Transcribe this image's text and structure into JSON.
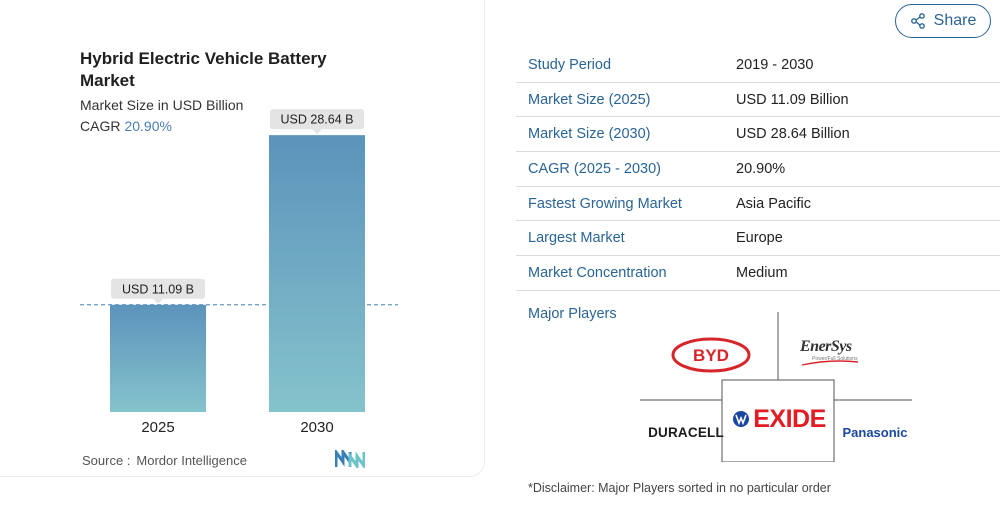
{
  "chart": {
    "title": "Hybrid Electric Vehicle Battery Market",
    "subtitle": "Market Size in USD Billion",
    "cagr_label": "CAGR",
    "cagr_value": "20.90%",
    "source_label": "Source :",
    "source_value": "Mordor Intelligence"
  },
  "chart_data": {
    "type": "bar",
    "title": "Hybrid Electric Vehicle Battery Market",
    "subtitle": "Market Size in USD Billion",
    "categories": [
      "2025",
      "2030"
    ],
    "values": [
      11.09,
      28.64
    ],
    "data_labels": [
      "USD 11.09 B",
      "USD 28.64 B"
    ],
    "ylim": [
      0,
      30
    ],
    "grid": false,
    "reference_line": 11.09,
    "bar_color_top": "#5b93bb",
    "bar_color_bottom": "#85c3cc"
  },
  "share": {
    "label": "Share",
    "icon": "share-icon"
  },
  "facts": [
    {
      "key": "Study Period",
      "value": "2019 - 2030"
    },
    {
      "key": "Market Size (2025)",
      "value": "USD 11.09 Billion"
    },
    {
      "key": "Market Size (2030)",
      "value": "USD 28.64 Billion"
    },
    {
      "key": "CAGR (2025 - 2030)",
      "value": "20.90%"
    },
    {
      "key": "Fastest Growing Market",
      "value": "Asia Pacific"
    },
    {
      "key": "Largest Market",
      "value": "Europe"
    },
    {
      "key": "Market Concentration",
      "value": "Medium"
    }
  ],
  "players": {
    "title": "Major Players",
    "logos": [
      "BYD",
      "EnerSys",
      "DURACELL",
      "EXIDE",
      "Panasonic"
    ],
    "enersys_tagline": "Power/Full Solutions"
  },
  "disclaimer": "*Disclaimer: Major Players sorted in no particular order",
  "colors": {
    "accent": "#2a6496",
    "exide_red": "#e31b23",
    "byd_red": "#d7262b",
    "panasonic_blue": "#1a47a0"
  }
}
